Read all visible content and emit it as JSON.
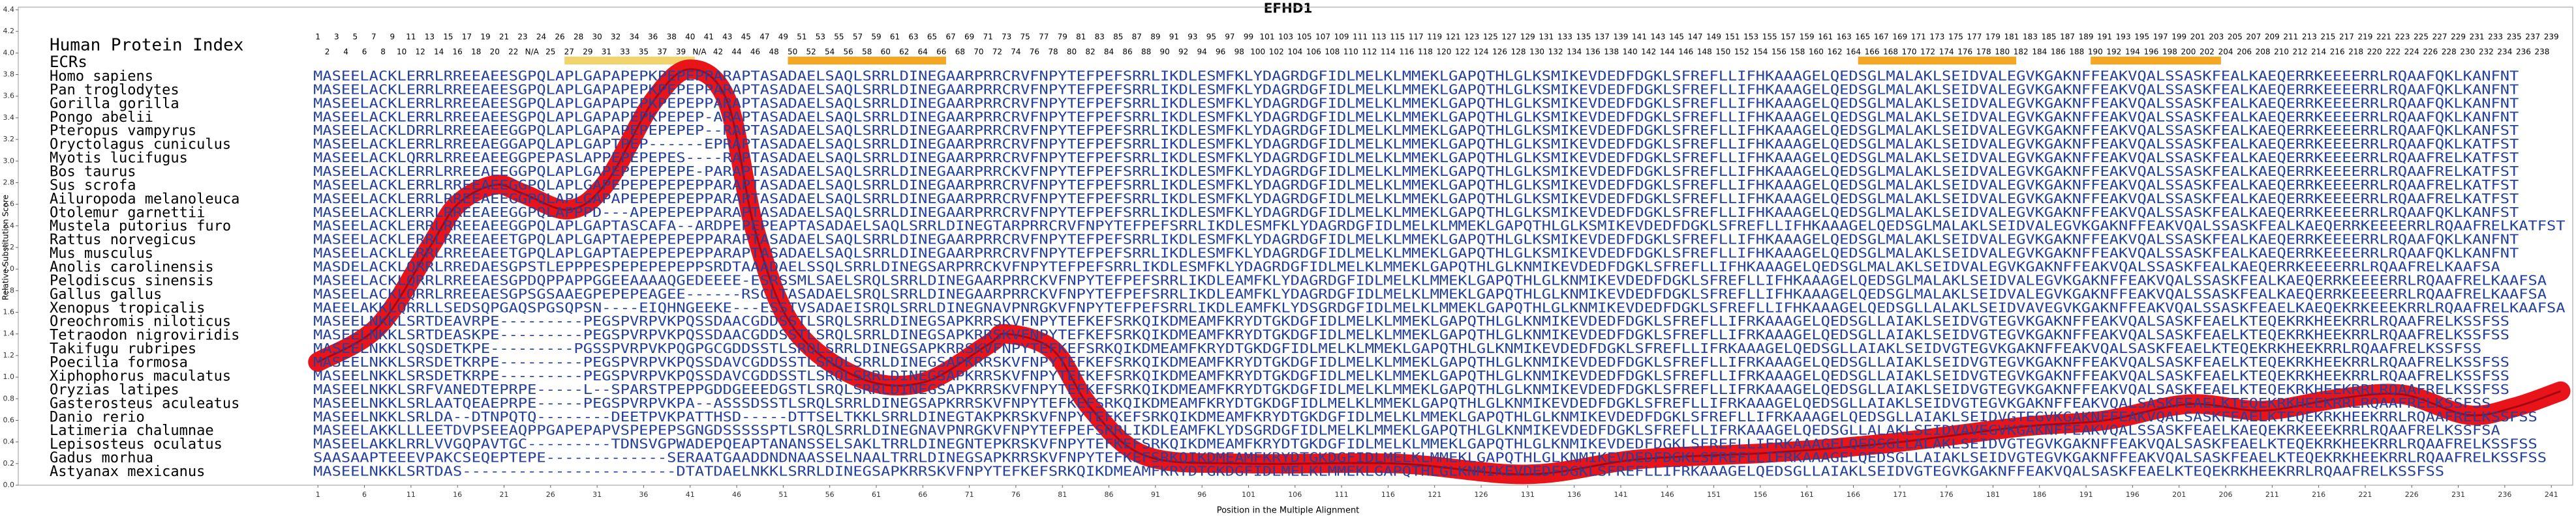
{
  "chart_data": {
    "type": "line",
    "title": "EFHD1",
    "xlabel": "Position in the Multiple Alignment",
    "ylabel": "Relative Substitution Score",
    "index_label": "Human Protein Index",
    "ecr_label": "ECRs",
    "xlim": [
      -31.2,
      243.3
    ],
    "ylim": [
      0,
      4.4
    ],
    "xticks": [
      1,
      6,
      11,
      16,
      21,
      26,
      31,
      36,
      41,
      46,
      51,
      56,
      61,
      66,
      71,
      76,
      81,
      86,
      91,
      96,
      101,
      106,
      111,
      116,
      121,
      126,
      131,
      136,
      141,
      146,
      151,
      156,
      161,
      166,
      171,
      176,
      181,
      186,
      191,
      196,
      201,
      206,
      211,
      216,
      221,
      226,
      231,
      236,
      241
    ],
    "yticks": [
      {
        "value": 0,
        "label": "0.0"
      },
      0.2,
      0.4,
      0.6,
      0.8,
      {
        "value": 1,
        "label": "1.0"
      },
      1.2,
      1.4,
      1.6,
      1.8,
      {
        "value": 2,
        "label": "2.0"
      },
      2.2,
      2.4,
      2.6,
      2.8,
      {
        "value": 3,
        "label": "3.0"
      },
      3.2,
      3.4,
      3.6,
      3.8,
      {
        "value": 4,
        "label": "4.0"
      },
      4.2,
      4.4
    ],
    "color": "#e8141a",
    "x": [
      1,
      7.5,
      13,
      16,
      20,
      23,
      28,
      32,
      37,
      41,
      45,
      48,
      52,
      59,
      66,
      73,
      75,
      80,
      84,
      90,
      101,
      117,
      131,
      143,
      157,
      170,
      184,
      193,
      202,
      210,
      218,
      225,
      232,
      237,
      242
    ],
    "values": [
      1.14,
      1.47,
      2.2,
      2.6,
      2.78,
      2.7,
      2.55,
      2.8,
      3.55,
      3.85,
      3.55,
      2.35,
      1.47,
      1.0,
      0.95,
      1.3,
      1.4,
      1.25,
      0.72,
      0.27,
      0.2,
      0.2,
      0.1,
      0.24,
      0.3,
      0.39,
      0.54,
      0.6,
      0.75,
      0.69,
      0.8,
      0.84,
      0.65,
      0.72,
      0.87
    ],
    "ecrs": [
      {
        "start": 28,
        "end": 41,
        "color": "#f3d36b"
      },
      {
        "start": 52,
        "end": 68,
        "color": "#f5a623"
      },
      {
        "start": 167,
        "end": 183,
        "color": "#f5a623"
      },
      {
        "start": 192,
        "end": 205,
        "color": "#f5a623"
      }
    ],
    "human_index": [
      1,
      2,
      3,
      4,
      5,
      6,
      7,
      8,
      9,
      10,
      11,
      12,
      13,
      14,
      15,
      16,
      17,
      18,
      19,
      20,
      21,
      22,
      23,
      "N/A",
      24,
      25,
      26,
      27,
      28,
      29,
      30,
      31,
      32,
      33,
      34,
      35,
      36,
      37,
      38,
      39,
      40,
      "N/A",
      41,
      42,
      43,
      44,
      45,
      46,
      47,
      48,
      49,
      50,
      51,
      52,
      53,
      54,
      55,
      56,
      57,
      58,
      59,
      60,
      61,
      62,
      63,
      64,
      65,
      66,
      67,
      68,
      69,
      70,
      71,
      72,
      73,
      74,
      75,
      76,
      77,
      78,
      79,
      80,
      81,
      82,
      83,
      84,
      85,
      86,
      87,
      88,
      89,
      90,
      91,
      92,
      93,
      94,
      95,
      96,
      97,
      98,
      99,
      100,
      101,
      102,
      103,
      104,
      105,
      106,
      107,
      108,
      109,
      110,
      111,
      112,
      113,
      114,
      115,
      116,
      117,
      118,
      119,
      120,
      121,
      122,
      123,
      124,
      125,
      126,
      127,
      128,
      129,
      130,
      131,
      132,
      133,
      134,
      135,
      136,
      137,
      138,
      139,
      140,
      141,
      142,
      143,
      144,
      145,
      146,
      147,
      148,
      149,
      150,
      151,
      152,
      153,
      154,
      155,
      156,
      157,
      158,
      159,
      160,
      161,
      162,
      163,
      164,
      165,
      166,
      167,
      168,
      169,
      170,
      171,
      172,
      173,
      174,
      175,
      176,
      177,
      178,
      179,
      180,
      181,
      182,
      183,
      184,
      185,
      186,
      187,
      188,
      189,
      190,
      191,
      192,
      193,
      194,
      195,
      196,
      197,
      198,
      199,
      200,
      201,
      202,
      203,
      204,
      205,
      206,
      207,
      208,
      209,
      210,
      211,
      212,
      213,
      214,
      215,
      216,
      217,
      218,
      219,
      220,
      221,
      222,
      223,
      224,
      225,
      226,
      227,
      228,
      229,
      230,
      231,
      232,
      233,
      234,
      235,
      236,
      237,
      238,
      239
    ],
    "sequences": [
      {
        "species": "Homo sapiens",
        "seq": "MASEELACKLERRLRREEAEESGPQLAPLGAPAPEPKPEPEPPARAPTASADAELSAQLSRRLDINEGAARPRRCRVFNPYTEFPEFSRRLIKDLESMFKLYDAGRDGFIDLMELKLMMEKLGAPQTHLGLKSMIKEVDEDFDGKLSFREFLLIFHKAAAGELQEDSGLMALAKLSEIDVALEGVKGAKNFFEAKVQALSSASKFEALKAEQERRKEEEERRLRQAAFQKLKANFNT"
      },
      {
        "species": "Pan troglodytes",
        "seq": "MASEELACKLERRLRREEAEESGPQLAPLGAPAPEPKPEPEPPARAPTASADAELSAQLSRRLDINEGAARPRRCRVFNPYTEFPEFSRRLIKDLESMFKLYDAGRDGFIDLMELKLMMEKLGAPQTHLGLKSMIKEVDEDFDGKLSFREFLLIFHKAAAGELQEDSGLMALAKLSEIDVALEGVKGAKNFFEAKVQALSSASKFEALKAEQERRKEEEERRLRQAAFQKLKANFNT"
      },
      {
        "species": "Gorilla gorilla",
        "seq": "MASEELACKLERRLRREEAEESGPQLAPLGAPAPEPKPEPEPPARAPTASADAELSAQLSRRLDINEGAARPRRCRVFNPYTEFPEFSRRLIKDLESMFKLYDAGRDGFIDLMELKLMMEKLGAPQTHLGLKSMIKEVDEDFDGKLSFREFLLIFHKAAAGELQEDSGLMALAKLSEIDVALEGVKGAKNFFEAKVQALSSASKFEALKAEQERRKEEEERRLRQAAFQKLKANFNT"
      },
      {
        "species": "Pongo abelii",
        "seq": "MASEELACKLERRLRREEAEESGPQLAPLGAPAPEPKPEPEP-ARAPTASADAELSAQLSRRLDINEGAARPRRCRVFNPYTEFPEFSRRLIKDLESMFKLYDAGRDGFIDLMELKLMMEKLGAPQTHLGLKSMIKEVDEDFDGKLSFREFLLIFHKAAAGELQEDSGLMALAKLSEIDVALEGVKGAKNFFEAKVQALSSASKFEALKAEQERRKEEEERRLRQAAFQKLKANFNT"
      },
      {
        "species": "Pteropus vampyrus",
        "seq": "MASEELACKLDRRLRREEAEEGGPQLAPLGAPAPEPEPEPEP--RAPTASADAELSAQLSRRLDINEGAARPRRCRVFNPYTEFPEFSRRLIKDLESMFKLYDAGRDGFIDLMELKLMMEKLGAPQTHLGLKSMIKEVDEDFDGKLSFREFLLIFHKAAAGELQEDSGLMALAKLSEIDVALEGVKGAKNFFEAKVQALSSASKFEALKAEQERRKEEEERRLRQAAFQKLKANFST"
      },
      {
        "species": "Oryctolagus cuniculus",
        "seq": "MASEELACKLERRLRREEAEGGAPQLAPLGAPTPEP------EPRAPTASADAELSAQLSRRLDINEGAARPRRCRVFNPYTEFPEFSRRLIKDLESMFKLYDAGRDGFIDLMELKLMMEKLGAPQTHLGLKSMIKEVDEDFDGKLSFREFLLIFHKAAAGELQEDSGLMALAKLSEIDVALEGVKGAKNFFEAKVQALSSASKFEALKAEQERRKEEEERRLRQAAFQKLKATFST"
      },
      {
        "species": "Myotis lucifugus",
        "seq": "MASEELACKLQRRLRREEAEEGGPEPASLAPPEPEPEPES----RAPTASADAELSAQLSRRLDINEGAARPRRCRVFNPYTEFPEFSRRLIKDLESMFKLYDAGRDGFIDLMELKLMMEKLGAPQTHLGLKSMIKEVDEDFDGKLSFREFLLIFHKAAAGELQEDSGLMALAKLSEIDVALEGVKGAKNFFEAKVQALSSASKFEALKAEQERRKEEEERRLRQAAFRELKATFST"
      },
      {
        "species": "Bos taurus",
        "seq": "MASEELACKLERRLRREEAEEGGPQLAPLGAPEPEPEPEPE-PARAPTASADAELSAQLSRRLDINEGAARPRRCKVFNPYTEFPEFSRRLIKDLESMFKLYDAGRDGFIDLMELKLMMEKLGAPQTHLGLKSMIKEVDEDFDGKLSFREFLLIFHKAAAGELQEDSGLMALAKLSEIDVALEGVKGAKNFFEAKVQALSSASKFEALKAEQERRKEEEERRLRQAAFRELKATFST"
      },
      {
        "species": "Sus scrofa",
        "seq": "MASEELACKLERRLRREEAEEGGPQLAPLGAPEPEPEPEPEPPARAPTASADAELSAQLSRRLDINEGAARPRRCRVFNPYTEFPEFSRRLIKDLESMFKLYDAGRDGFIDLMELKLMMEKLGAPQTHLGLKSMIKEVDEDFDGKLSFREFLLIFHKAAAGELQEDSGLMALAKLSEIDVALEGVKGAKNFFEAKVQALSSASKFEALKAEQERRKEEEERRLRQAAFRELKATFST"
      },
      {
        "species": "Ailuropoda melanoleuca",
        "seq": "MASEELACKLERRLRREEAEEGGPQLAPLGAPAPEPEPEPEPPARAPTASADAELSAQLSRRLDINEGAARPRRCRVFNPYTEFPEFSRRLIKDLESMFKLYDAGRDGFIDLMELKLMMEKLGAPQTHLGLKSMIKEVDEDFDGKLSFREFLLIFHKAAAGELQEDSGLMALAKLSEIDVALEGVKGAKNFFEAKVQALSSASKFEALKAEQERRKEEEERRLRQAAFRELKATFST"
      },
      {
        "species": "Otolemur garnettii",
        "seq": "MASEELACKLERRLRREEAEEGGPQLAPPPD---APEPEPEPPARAPTASADAELSAQLSRRLDINEGAARPRRCRVFNPYTEFPEFSRRLIKDLESMFKLYDAGRDGFIDLMELKLMMEKLGAPQTHLGLKSMIKEVDEDFDGKLSFREFLLIFHKAAAGELQEDSGLMALAKLSEIDVALEGVKGAKNFFEAKVQALSSASKFEALKAEQERRKEEEERRLRQAAFQKLKANFST"
      },
      {
        "species": "Mustela putorius furo",
        "seq": "MASEELACKLERRLRREEAEEGGPQLAPLGAPTASCAFA--ARDPEPEPEAPTASADAELSAQLSRRLDINEGTARPRRCRVFNPYTEFPEFSRRLIKDLESMFKLYDAGRDGFIDLMELKLMMEKLGAPQTHLGLKSMIKEVDEDFDGKLSFREFLLIFHKAAAGELQEDSGLMALAKLSEIDVALEGVKGAKNFFEAKVQALSSASKFEALKAEQERRKEEEERRLRQAAFRELKATFST"
      },
      {
        "species": "Rattus norvegicus",
        "seq": "MASEELACKLERRLRREEAEETGPQLAPLGAPTAEPEPEPEPPARAPTASADAELSAQLSRRLDINEGAARPRRCRVFNPYTEFPEFSRRLIKDLESMFKLYDAGRDGFIDLMELKLMMEKLGAPQTHLGLKSMIKEVDEDFDGKLSFREFLLIFHKAAAGELQEDSGLMALAKLSEIDVALEGVKGAKNFFEAKVQALSSASKFEALKAEQERRKEEEERRLRQAAFQKLKANFNT"
      },
      {
        "species": "Mus musculus",
        "seq": "MASEELACKLERRLRREEAEETGPQLAPLGAPTAEPEPEPEPPARAPTASADAELSAQLSRRLDINEGAARPRRCRVFNPYTEFPEFSRRLIKDLESMFKLYDAGRDGFIDLMELKLMMEKLGAPQTHLGLKSMIKEVDEDFDGKLSFREFLLIFHKAAAGELQEDSGLMALAKLSEIDVALEGVKGAKNFFEAKVQALSSASKFEALKAEQERRKEEEERRLRQAAFQKLKANFNT"
      },
      {
        "species": "Anolis carolinensis",
        "seq": "MASDELACKLQRRLRREDAESGPSTLEPPPESPEPEPEPEPPSRDTAAADAELSSQLSRRLDINEGSARPRRCKVFNPYTEFPEFSRRLIKDLESMFKLYDAGRDGFIDLMELKLMMEKLGAPQTHLGLKNMIKEVDEDFDGKLSFREFLLIFHKAAAGELQEDSGLMALAKLSEIDVALEGVKGAKNFFEAKVQALSSASKFEALKAEQERRKEEEERRLRQAAFRELKAAFSA"
      },
      {
        "species": "Pelodiscus sinensis",
        "seq": "MASEELACKLQRRLRREEAESGPDQPPAPPGGEEAAAAQGEDEEEE-ESRSSMLSAELSRQLSRRLDINEGAARPRRCKVFNPYTEFPEFSRRLIKDLEAMFKLYDAGRDGFIDLMELKLMMEKLGAPQTHLGLKNMIKEVDEDFDGKLSFREFLLIFHKAAAGELQEDSGLMALAKLSEIDVALEGVKGAKNFFEAKVQALSSASKFEALKAEQERRKEEEERRLRQAAFRELKAAFSA"
      },
      {
        "species": "Gallus gallus",
        "seq": "MASEELACKLQRRLRREEAESGPSGSAAEGPEPEPEAGEE------RSCLTASADAELSRQLSRRLDINEGAARPRRCKVFNPYTEFPEFSRRLIKDLEAMFKLYDAGRDGFIDLMELKLMMEKLGAPQTHLGLKNMIKEVDEDFDGKLSFREFLLIFHKAAAGELQEDSGLMALAKLSEIDVALEGVKGAKNFFEAKVQALSSASKFEALKAEQERRKEEEERRLRQAAFRELKAAFSA"
      },
      {
        "species": "Xenopus tropicalis",
        "seq": "MAEELAKKLQRRLLSEDSQPGAQSPGSQPSN----EIQHNGEEKE---ESSTVSADAEISRQLSRRLDINEGNAVPNRGKVFNPYTEFPEFSRRLIKDLEAMFKLYDSGRDGFIDLMELKLMMEKLGAPQTHLGLKNMIKEVDEDFDGKLSFREFLLIFHKAAAGELQEDSGLLALAKLSEIDVAVEGVKGAKNFFEAKVQALSSASKFEAELKAEQEKRKEEEKRRLRQAAFRELKAAFSA"
      },
      {
        "species": "Oreochromis niloticus",
        "seq": "MASEELNKKLSRTDEAVRPE---------PEGSPVRPVKPQSSDAACGDDSSTLSRQLSRRLDINEGSAPKRRSKVFNPYTEFKEFSRKQIKDMEAMFKRYDTGKDGFIDLMELKLMMEKLGAPQTHLGLKNMIKEVDEDFDGKLSFREFLLIFRKAAAGELQEDSGLLAIAKLSEIDVGTEGVKGAKNFFEAKVQALSASKFEAELKTEQEKRKHEEKRRLRQAAFRELKSSFSS"
      },
      {
        "species": "Tetraodon nigroviridis",
        "seq": "MASEELNKKLSRTDEASKPE---------PEGSPVRPVKPQSSDAACGDDSSTLSRQLSRRLDINEGSAPKRRSKVFNPYTEFKEFSRKQIKDMEAMFKRYDTGKDGFIDLMELKLMMEKLGAPQTHLGLKNMIKEVDEDFDGKLSFREFLLIFRKAAAGELQEDSGLLAIAKLSEIDVGTEGVKGAKNFFEAKVQALSASKFEAELKTEQEKRKHEEKRRLRQAAFRELKSSFSS"
      },
      {
        "species": "Takifugu rubripes",
        "seq": "MASEELNKKLSQSDETKPE---------PGSSPVRPVKPQGPGCGDDSSTLSRQLSRRLDINEGSAPKRRSKVFNPYTEFKEFSRKQIKDMEAMFKRYDTGKDGFIDLMELKLMMEKLGAPQTHLGLKNMIKEVDEDFDGKLSFREFLLIFRKAAAGELQEDSGLLAIAKLSEIDVGTEGVKGAKNFFEAKVQALSASKFEAELKTEQEKRKHEEKRRLRQAAFRELKSSFSS"
      },
      {
        "species": "Poecilia formosa",
        "seq": "MASEELNKKLSRSDETKRPE---------PEGSPVRPVKPQSSDAVCGDDSSTLSRQLSRRLDINEGSAPKRRSKVFNPYTEFKEFSRKQIKDMEAMFKRYDTGKDGFIDLMELKLMMEKLGAPQTHLGLKNMIKEVDEDFDGKLSFREFLLIFRKAAAGELQEDSGLLAIAKLSEIDVGTEGVKGAKNFFEAKVQALSASKFEAELKTEQEKRKHEEKRRLRQAAFRELKSSFSS"
      },
      {
        "species": "Xiphophorus maculatus",
        "seq": "MASEELNKKLSRSDETKRPE---------PEGSPVRPVKPQSSDAVCGDDSSTLSRQLSRRLDINEGSAPKRRSKVFNPYTEFKEFSRKQIKDMEAMFKRYDTGKDGFIDLMELKLMMEKLGAPQTHLGLKNMIKEVDEDFDGKLSFREFLLIFRKAAAGELQEDSGLLAIAKLSEIDVGTEGVKGAKNFFEAKVQALSASKFEAELKTEQEKRKHEEKRRLRQAAFRELKSSFSS"
      },
      {
        "species": "Oryzias latipes",
        "seq": "MASEELNKKLSRFVANEDTEPRPE-----L--SPARSTPEPPGDDGEEEDGSTLSRQLSRRLDINEGSAPKRRSKVFNPYTEFKEFSRKQIKDMEAMFKRYDTGKDGFIDLMELKLMMEKLGAPQTHLGLKNMIKEVDEDFDGKLSFREFLLIFRKAAAGELQEDSGLLAIAKLSEIDVGTEGVKGAKNFFEAKVQALSASKFEAELKTEQEKRKHEEKRRLRQAAFRELKSSFSS"
      },
      {
        "species": "Gasterosteus aculeatus",
        "seq": "MASEELNKKLSRLAATQEAEPRPE-----PEGSPVRPVKPA--ASSSDSSTLSRQLSRRLDINEGSAPKRRSKVFNPYTEFKEFSRKQIKDMEAMFKRYDTGKDGFIDLMELKLMMEKLGAPQTHLGLKNMIKEVDEDFDGKLSFREFLLIFRKAAAGELQEDSGLLAIAKLSEIDVGTEGVKGAKNFFEAKVQALSASKFEAELKTEQEKRKHEEKRRLRQAAFRELKSSFSS"
      },
      {
        "species": "Danio rerio",
        "seq": "MASEELNKKLSRLDA--DTNPQTQ--------DEETPVKPATTHSD-----DTTSELTKKLSRRLDINEGTAKPKRSKVFNPYTEFKEFSRKQIKDMEAMFKRYDTGKDGFIDLMELKLMMEKLGAPQTHLGLKNMIKEVDEDFDGKLSFREFLLIFRKAAAGELQEDSGLLAIAKLSEIDVGTEGVKGAKNFFEAKVQALSASKFEAELKTEQEKRKHEEKRRLRQAAFRELKSSFSS"
      },
      {
        "species": "Latimeria chalumnae",
        "seq": "MASEELAKKLLLEETDVPSEEAQPPGAPEPAPVSPEPEPSGNGDSSSSSPTLSRQLSRRLDINEGNAVPNRGKVFNPYTEFPEFSRRLIKDLEAMFKLYDSGRDGFIDLMELKLMMEKLGAPQTHLGLKNMIKEVDEDFDGKLSFREFLLIFRKAAAGELQEDSGLLALAKLSEIDVAVEGVKGAKNFFEAKVQALSSASKFEAELKAEQEKRKEEEKRRLRQAAFRELKSSFSA"
      },
      {
        "species": "Lepisosteus oculatus",
        "seq": "MASEELAKKLRRLVVGQPAVTGC---------TDNSVGPWADEPQEAPTANANSSELSAKLTRRLDINEGNTEPKRSKVFNPYTEFKEFSRKQIKDMEAMFKRYDTGKDGFIDLMELKLMMEKLGAPQTHLGLKNMIKEVDEDFDGKLSFREFLLIFRKAAAGELQEDSGLLALAKLSEIDVGTEGVKGAKNFFEAKVQALSASKFEAELKTEQEKRKHEEKRRLRQAAFRELKSSFSS"
      },
      {
        "species": "Gadus morhua",
        "seq": "SAASAAPTEEEVPAKCSEQEPTEPE-------------SERAATGAADDNDNAASSELNAALTRRLDINEGSAPKRRSKVFNPYTEFKEFSRKQIKDMEAMFKRYDTGKDGFIDLMELKLMMEKLGAPQTHLGLKNMIKEVDEDFDGKLSFREFLLIFRKAAAGELQEDSGLLAIAKLSEIDVGTEGVKGAKNFFEAKVQALSASKFEAELKTEQEKRKHEEKRRLRQAAFRELKSSFSS"
      },
      {
        "species": "Astyanax mexicanus",
        "seq": "MASEELNKKLSRTDAS-----------------------DTATDAELNKKLSRRLDINEGSAPKRRSKVFNPYTEFKEFSRKQIKDMEAMFKRYDTGKDGFIDLMELKLMMEKLGAPQTHLGLKNMIKEVDEDFDGKLSFREFLLIFRKAAAGELQEDSGLLAIAKLSEIDVGTEGVKGAKNFFEAKVQALSASKFEAELKTEQEKRKHEEKRRLRQAAFRELKSSFSS"
      }
    ]
  }
}
